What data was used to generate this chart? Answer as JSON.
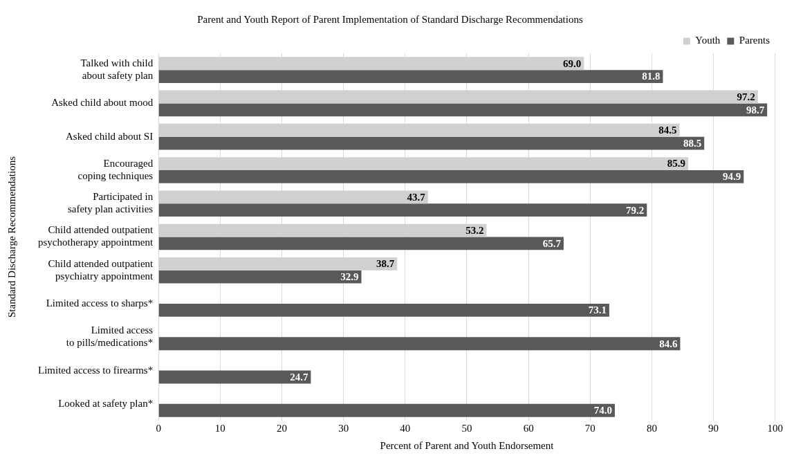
{
  "chart_data": {
    "type": "bar",
    "orientation": "horizontal",
    "title": "Parent and Youth Report of Parent Implementation of Standard Discharge Recommendations",
    "xlabel": "Percent of Parent and Youth Endorsement",
    "ylabel": "Standard Discharge Recommendations",
    "categories": [
      "Talked with child\nabout safety plan",
      "Asked child about mood",
      "Asked child about SI",
      "Encouraged\ncoping techniques",
      "Participated in\nsafety plan activities",
      "Child attended outpatient\npsychotherapy appointment",
      "Child attended outpatient\npsychiatry appointment",
      "Limited access to sharps*",
      "Limited access\nto pills/medications*",
      "Limited access to firearms*",
      "Looked at safety plan*"
    ],
    "series": [
      {
        "name": "Youth",
        "color": "#d0d0d0",
        "values": [
          69.0,
          97.2,
          84.5,
          85.9,
          43.7,
          53.2,
          38.7,
          null,
          null,
          null,
          null
        ],
        "value_labels": [
          "69.0",
          "97.2",
          "84.5",
          "85.9",
          "43.7",
          "53.2",
          "38.7",
          null,
          null,
          null,
          null
        ]
      },
      {
        "name": "Parents",
        "color": "#595959",
        "values": [
          81.8,
          98.7,
          88.5,
          94.9,
          79.2,
          65.7,
          32.9,
          73.1,
          84.6,
          24.7,
          74.0
        ],
        "value_labels": [
          "81.8",
          "98.7",
          "88.5",
          "94.9",
          "79.2",
          "65.7",
          "32.9",
          "73.1",
          "84.6",
          "24.7",
          "74.0"
        ]
      }
    ],
    "xlim": [
      0,
      100
    ],
    "xticks": [
      0,
      10,
      20,
      30,
      40,
      50,
      60,
      70,
      80,
      90,
      100
    ],
    "grid": "x",
    "legend": "top right"
  }
}
